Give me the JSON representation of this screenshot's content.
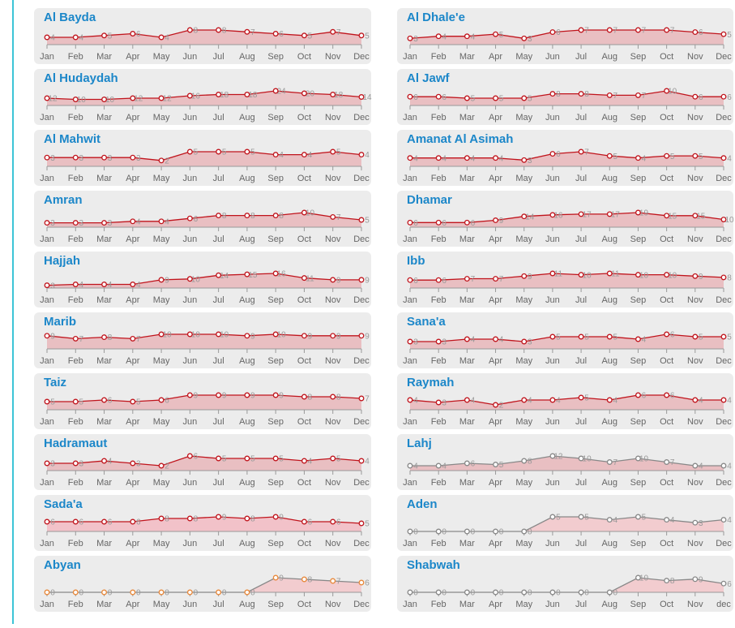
{
  "chart_data": [
    {
      "type": "line",
      "title": "Al Bayda",
      "categories": [
        "Jan",
        "Feb",
        "Mar",
        "Apr",
        "May",
        "Jun",
        "Jul",
        "Aug",
        "Sep",
        "Oct",
        "Nov",
        "Dec"
      ],
      "values": [
        4,
        4,
        5,
        6,
        4,
        8,
        8,
        7,
        6,
        5,
        7,
        5
      ],
      "color": "#c0141c",
      "area": "#e8b4b8",
      "marker": "#c0141c"
    },
    {
      "type": "line",
      "title": "Al Hudaydah",
      "categories": [
        "Jan",
        "Feb",
        "Mar",
        "Apr",
        "May",
        "Jun",
        "Jul",
        "Aug",
        "Sep",
        "Oct",
        "Nov",
        "Dec"
      ],
      "values": [
        12,
        10,
        10,
        12,
        12,
        16,
        18,
        18,
        24,
        20,
        18,
        14
      ],
      "color": "#c0141c",
      "area": "#e8b4b8",
      "marker": "#c0141c"
    },
    {
      "type": "line",
      "title": "Al Mahwit",
      "categories": [
        "Jan",
        "Feb",
        "Mar",
        "Apr",
        "May",
        "Jun",
        "Jul",
        "Aug",
        "Sep",
        "Oct",
        "Nov",
        "Dec"
      ],
      "values": [
        3,
        3,
        3,
        3,
        2,
        5,
        5,
        5,
        4,
        4,
        5,
        4
      ],
      "color": "#c0141c",
      "area": "#e8b4b8",
      "marker": "#c0141c"
    },
    {
      "type": "line",
      "title": "Amran",
      "categories": [
        "Jan",
        "Feb",
        "Mar",
        "Apr",
        "May",
        "Jun",
        "Jul",
        "Aug",
        "Sep",
        "Oct",
        "Nov",
        "Dec"
      ],
      "values": [
        3,
        3,
        3,
        4,
        4,
        6,
        8,
        8,
        8,
        10,
        7,
        5
      ],
      "color": "#c0141c",
      "area": "#e8b4b8",
      "marker": "#c0141c"
    },
    {
      "type": "line",
      "title": "Hajjah",
      "categories": [
        "Jan",
        "Feb",
        "Mar",
        "Apr",
        "May",
        "Jun",
        "Jul",
        "Aug",
        "Sep",
        "Oct",
        "Nov",
        "Dec"
      ],
      "values": [
        3,
        4,
        4,
        4,
        9,
        10,
        14,
        15,
        16,
        11,
        9,
        9
      ],
      "color": "#c0141c",
      "area": "#e8b4b8",
      "marker": "#c0141c"
    },
    {
      "type": "line",
      "title": "Marib",
      "categories": [
        "Jan",
        "Feb",
        "Mar",
        "Apr",
        "May",
        "Jun",
        "Jul",
        "Aug",
        "Sep",
        "Oct",
        "Nov",
        "Dec"
      ],
      "values": [
        9,
        7,
        8,
        7,
        10,
        10,
        10,
        9,
        10,
        9,
        9,
        9
      ],
      "color": "#c0141c",
      "area": "#e8b4b8",
      "marker": "#c0141c"
    },
    {
      "type": "line",
      "title": "Taiz",
      "categories": [
        "Jan",
        "Feb",
        "Mar",
        "Apr",
        "May",
        "Jun",
        "Jul",
        "Aug",
        "Sep",
        "Oct",
        "Nov",
        "Dec"
      ],
      "values": [
        5,
        5,
        6,
        5,
        6,
        9,
        9,
        9,
        9,
        8,
        8,
        7
      ],
      "color": "#c0141c",
      "area": "#e8b4b8",
      "marker": "#c0141c"
    },
    {
      "type": "line",
      "title": "Hadramaut",
      "categories": [
        "Jan",
        "Feb",
        "Mar",
        "Apr",
        "May",
        "Jun",
        "Jul",
        "Aug",
        "Sep",
        "Oct",
        "Nov",
        "Dec"
      ],
      "values": [
        3,
        3,
        4,
        3,
        2,
        6,
        5,
        5,
        5,
        4,
        5,
        4
      ],
      "color": "#c0141c",
      "area": "#e8b4b8",
      "marker": "#c0141c"
    },
    {
      "type": "line",
      "title": "Sada'a",
      "categories": [
        "Jan",
        "Feb",
        "Mar",
        "Apr",
        "May",
        "Jun",
        "Jul",
        "Aug",
        "Sep",
        "Oct",
        "Nov",
        "Dec"
      ],
      "values": [
        6,
        6,
        6,
        6,
        8,
        8,
        9,
        8,
        9,
        6,
        6,
        5
      ],
      "color": "#c0141c",
      "area": "#f4b8c0",
      "marker": "#c0141c"
    },
    {
      "type": "line",
      "title": "Abyan",
      "categories": [
        "Jan",
        "Feb",
        "Mar",
        "Apr",
        "May",
        "Jun",
        "Jul",
        "Aug",
        "Sep",
        "Oct",
        "Nov",
        "Dec"
      ],
      "values": [
        0,
        0,
        0,
        0,
        0,
        0,
        0,
        0,
        9,
        8,
        7,
        6
      ],
      "color": "#888888",
      "area": "#f4c4c8",
      "marker": "#e8883a"
    },
    {
      "type": "line",
      "title": "Al Dhale'e",
      "categories": [
        "Jan",
        "Feb",
        "Mar",
        "Apr",
        "May",
        "Jun",
        "Jul",
        "Aug",
        "Sep",
        "Oct",
        "Nov",
        "Dec"
      ],
      "values": [
        3,
        4,
        4,
        5,
        3,
        6,
        7,
        7,
        7,
        7,
        6,
        5
      ],
      "color": "#c0141c",
      "area": "#e8b4b8",
      "marker": "#c0141c"
    },
    {
      "type": "line",
      "title": "Al Jawf",
      "categories": [
        "Jan",
        "Feb",
        "Mar",
        "Apr",
        "May",
        "Jun",
        "Jul",
        "Aug",
        "Sep",
        "Oct",
        "Nov",
        "Dec"
      ],
      "values": [
        6,
        6,
        5,
        5,
        5,
        8,
        8,
        7,
        7,
        10,
        6,
        6
      ],
      "color": "#c0141c",
      "area": "#e8b4b8",
      "marker": "#c0141c"
    },
    {
      "type": "line",
      "title": "Amanat Al Asimah",
      "categories": [
        "Jan",
        "Feb",
        "Mar",
        "Apr",
        "May",
        "Jun",
        "Jul",
        "Aug",
        "Sep",
        "Oct",
        "Nov",
        "Dec"
      ],
      "values": [
        4,
        4,
        4,
        4,
        3,
        6,
        7,
        5,
        4,
        5,
        5,
        4
      ],
      "color": "#c0141c",
      "area": "#e8b4b8",
      "marker": "#c0141c"
    },
    {
      "type": "line",
      "title": "Dhamar",
      "categories": [
        "Jan",
        "Feb",
        "Mar",
        "Apr",
        "May",
        "Jun",
        "Jul",
        "Aug",
        "Sep",
        "Oct",
        "Nov",
        "Dec"
      ],
      "values": [
        6,
        6,
        6,
        9,
        14,
        16,
        17,
        17,
        19,
        15,
        15,
        10
      ],
      "color": "#c0141c",
      "area": "#e8b4b8",
      "marker": "#c0141c"
    },
    {
      "type": "line",
      "title": "Ibb",
      "categories": [
        "Jan",
        "Feb",
        "Mar",
        "Apr",
        "May",
        "Jun",
        "Jul",
        "Aug",
        "Sep",
        "Oct",
        "Nov",
        "Dec"
      ],
      "values": [
        6,
        6,
        7,
        7,
        9,
        11,
        10,
        11,
        10,
        10,
        9,
        8
      ],
      "color": "#c0141c",
      "area": "#e8b4b8",
      "marker": "#c0141c"
    },
    {
      "type": "line",
      "title": "Sana'a",
      "categories": [
        "Jan",
        "Feb",
        "Mar",
        "Apr",
        "May",
        "Jun",
        "Jul",
        "Aug",
        "Sep",
        "Oct",
        "Nov",
        "Dec"
      ],
      "values": [
        3,
        3,
        4,
        4,
        3,
        5,
        5,
        5,
        4,
        6,
        5,
        5
      ],
      "color": "#c0141c",
      "area": "#e8b4b8",
      "marker": "#c0141c"
    },
    {
      "type": "line",
      "title": "Raymah",
      "categories": [
        "Jan",
        "Feb",
        "Mar",
        "Apr",
        "May",
        "Jun",
        "Jul",
        "Aug",
        "Sep",
        "Oct",
        "Nov",
        "Dec"
      ],
      "values": [
        4,
        3,
        4,
        2,
        4,
        4,
        5,
        4,
        6,
        6,
        4,
        4
      ],
      "color": "#c0141c",
      "area": "#e8b4b8",
      "marker": "#c0141c"
    },
    {
      "type": "line",
      "title": "Lahj",
      "categories": [
        "Jan",
        "Feb",
        "Mar",
        "Apr",
        "May",
        "Jun",
        "Jul",
        "Aug",
        "Sep",
        "Oct",
        "Nov",
        "Dec"
      ],
      "values": [
        4,
        4,
        6,
        5,
        8,
        12,
        10,
        7,
        10,
        7,
        4,
        4
      ],
      "color": "#888888",
      "area": "#e8b4b8",
      "marker": "#888888"
    },
    {
      "type": "line",
      "title": "Aden",
      "categories": [
        "Jan",
        "Feb",
        "Mar",
        "Apr",
        "May",
        "Jun",
        "Jul",
        "Aug",
        "Sep",
        "Oct",
        "Nov",
        "Dec"
      ],
      "values": [
        0,
        0,
        0,
        0,
        0,
        5,
        5,
        4,
        5,
        4,
        3,
        4
      ],
      "color": "#888888",
      "area": "#f4c4c8",
      "marker": "#888888"
    },
    {
      "type": "line",
      "title": "Shabwah",
      "categories": [
        "Jan",
        "Feb",
        "Mar",
        "Apr",
        "May",
        "Jun",
        "Jul",
        "Aug",
        "Sep",
        "Oct",
        "Nov",
        "dec"
      ],
      "values": [
        0,
        0,
        0,
        0,
        0,
        0,
        0,
        0,
        10,
        8,
        9,
        6
      ],
      "color": "#888888",
      "area": "#f4c4c8",
      "marker": "#888888"
    }
  ]
}
